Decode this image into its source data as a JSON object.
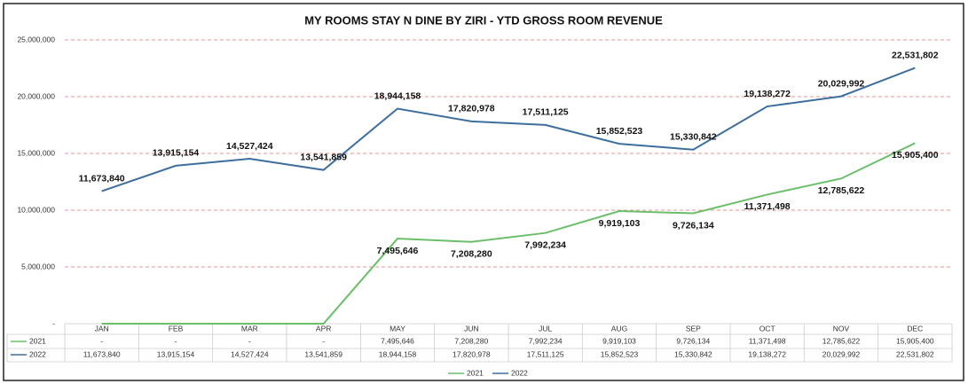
{
  "chart_data": {
    "type": "line",
    "title": "MY ROOMS STAY N DINE BY ZIRI - YTD GROSS ROOM REVENUE",
    "categories": [
      "JAN",
      "FEB",
      "MAR",
      "APR",
      "MAY",
      "JUN",
      "JUL",
      "AUG",
      "SEP",
      "OCT",
      "NOV",
      "DEC"
    ],
    "series": [
      {
        "name": "2021",
        "color": "#6cbf6a",
        "values": [
          0,
          0,
          0,
          0,
          7495646,
          7208280,
          7992234,
          9919103,
          9726134,
          11371498,
          12785622,
          15905400
        ],
        "value_labels": [
          "-",
          "-",
          "-",
          "-",
          "7,495,646",
          "7,208,280",
          "7,992,234",
          "9,919,103",
          "9,726,134",
          "11,371,498",
          "12,785,622",
          "15,905,400"
        ]
      },
      {
        "name": "2022",
        "color": "#3d6f9e",
        "values": [
          11673840,
          13915154,
          14527424,
          13541859,
          18944158,
          17820978,
          17511125,
          15852523,
          15330842,
          19138272,
          20029992,
          22531802
        ],
        "value_labels": [
          "11,673,840",
          "13,915,154",
          "14,527,424",
          "13,541,859",
          "18,944,158",
          "17,820,978",
          "17,511,125",
          "15,852,523",
          "15,330,842",
          "19,138,272",
          "20,029,992",
          "22,531,802"
        ]
      }
    ],
    "ylim": [
      0,
      25000000
    ],
    "yticks": [
      {
        "value": 0,
        "label": "-"
      },
      {
        "value": 5000000,
        "label": "5,000,000"
      },
      {
        "value": 10000000,
        "label": "10,000,000"
      },
      {
        "value": 15000000,
        "label": "15,000,000"
      },
      {
        "value": 20000000,
        "label": "20,000,000"
      },
      {
        "value": 25000000,
        "label": "25,000,000"
      }
    ],
    "grid": true
  }
}
